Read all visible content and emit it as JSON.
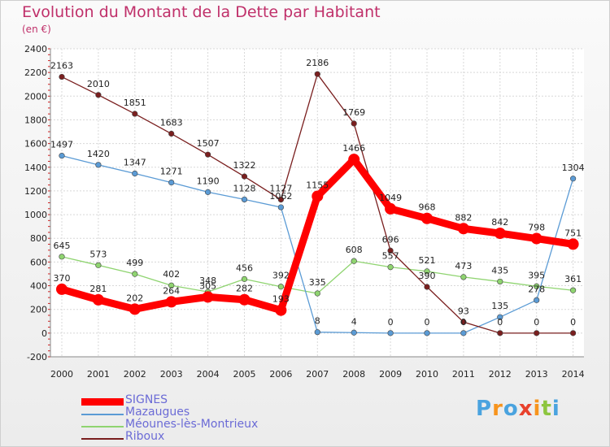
{
  "header": {
    "title": "Evolution du Montant de la Dette par Habitant",
    "subtitle": "(en €)"
  },
  "logo": {
    "letters": [
      "P",
      "r",
      "o",
      "x",
      "i",
      "t",
      "i"
    ],
    "colors": [
      "#4aa3df",
      "#f7941d",
      "#4aa3df",
      "#e8412c",
      "#f7941d",
      "#8dc63f",
      "#4aa3df"
    ]
  },
  "chart_data": {
    "type": "line",
    "title": "Evolution du Montant de la Dette par Habitant",
    "subtitle": "(en €)",
    "categories": [
      "2000",
      "2001",
      "2002",
      "2003",
      "2004",
      "2005",
      "2006",
      "2007",
      "2008",
      "2009",
      "2010",
      "2011",
      "2012",
      "2013",
      "2014"
    ],
    "ylim": [
      -200,
      2400
    ],
    "yticks": [
      -200,
      0,
      200,
      400,
      600,
      800,
      1000,
      1200,
      1400,
      1600,
      1800,
      2000,
      2200,
      2400
    ],
    "grid": true,
    "legend_position": "bottom-left",
    "series": [
      {
        "name": "SIGNES",
        "color": "#ff0000",
        "values": [
          370,
          281,
          202,
          264,
          305,
          282,
          193,
          1155,
          1466,
          1049,
          968,
          882,
          842,
          798,
          751
        ],
        "labels": [
          "370",
          "281",
          "202",
          "264",
          "305",
          "282",
          "193",
          "1155",
          "1466",
          "1049",
          "968",
          "882",
          "842",
          "798",
          "751"
        ]
      },
      {
        "name": "Mazaugues",
        "color": "#5b9bd5",
        "values": [
          1497,
          1420,
          1347,
          1271,
          1190,
          1128,
          1062,
          8,
          4,
          0,
          0,
          0,
          135,
          278,
          1304
        ],
        "labels": [
          "1497",
          "1420",
          "1347",
          "1271",
          "1190",
          "1128",
          "1062",
          "8",
          "4",
          "0",
          "0",
          "0",
          "135",
          "278",
          "1304"
        ]
      },
      {
        "name": "Méounes-lès-Montrieux",
        "color": "#8fd470",
        "values": [
          645,
          573,
          499,
          402,
          348,
          456,
          392,
          335,
          608,
          557,
          521,
          473,
          435,
          395,
          361
        ],
        "labels": [
          "645",
          "573",
          "499",
          "402",
          "348",
          "456",
          "392",
          "335",
          "608",
          "557",
          "521",
          "473",
          "435",
          "395",
          "361"
        ]
      },
      {
        "name": "Riboux",
        "color": "#7a1f1f",
        "values": [
          2163,
          2010,
          1851,
          1683,
          1507,
          1322,
          1127,
          2186,
          1769,
          696,
          390,
          93,
          0,
          0,
          0
        ],
        "labels": [
          "2163",
          "2010",
          "1851",
          "1683",
          "1507",
          "1322",
          "1127",
          "2186",
          "1769",
          "696",
          "390",
          "93",
          "0",
          "0",
          "0"
        ]
      }
    ]
  }
}
